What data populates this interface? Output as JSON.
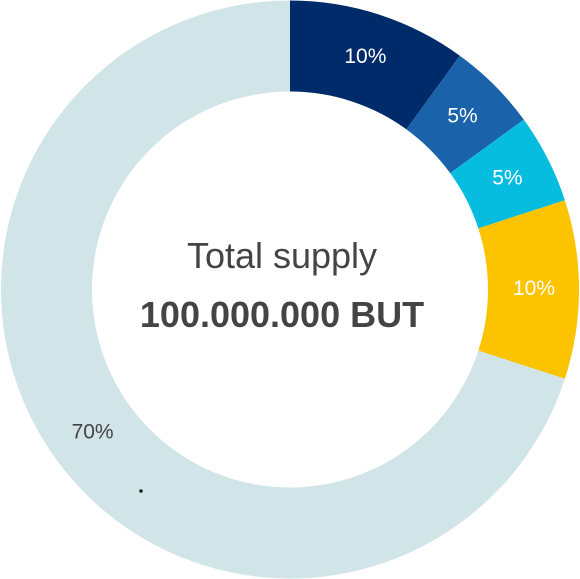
{
  "center": {
    "title": "Total supply",
    "value": "100.000.000 BUT"
  },
  "chart_data": {
    "type": "pie",
    "donut": true,
    "start_angle_deg": 0,
    "direction": "clockwise",
    "slices": [
      {
        "value": 10,
        "label": "10%",
        "color": "#002b6b",
        "label_color": "#ffffff"
      },
      {
        "value": 5,
        "label": "5%",
        "color": "#1a63aa",
        "label_color": "#ffffff"
      },
      {
        "value": 5,
        "label": "5%",
        "color": "#06bde0",
        "label_color": "#ffffff"
      },
      {
        "value": 10,
        "label": "10%",
        "color": "#fbc300",
        "label_color": "#ffffff"
      },
      {
        "value": 70,
        "label": "70%",
        "color": "#d1e4e8",
        "label_color": "#444444"
      }
    ]
  }
}
